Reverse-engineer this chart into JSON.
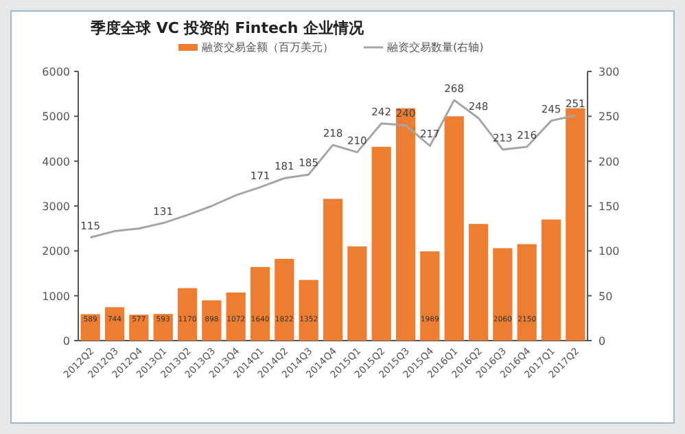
{
  "chart_data": {
    "type": "bar",
    "title": "季度全球 VC 投资的 Fintech 企业情况",
    "categories": [
      "2012Q2",
      "2012Q3",
      "2012Q4",
      "2013Q1",
      "2013Q2",
      "2013Q3",
      "2013Q4",
      "2014Q1",
      "2014Q2",
      "2014Q3",
      "2014Q4",
      "2015Q1",
      "2015Q2",
      "2015Q3",
      "2015Q4",
      "2016Q1",
      "2016Q2",
      "2016Q3",
      "2016Q4",
      "2017Q1",
      "2017Q2"
    ],
    "series": [
      {
        "name": "融资交易金额（百万美元）",
        "color": "#ed7d31",
        "values": [
          589,
          744,
          577,
          593,
          1170,
          898,
          1072,
          1640,
          1822,
          1352,
          3160,
          2100,
          4320,
          5180,
          1989,
          5000,
          2600,
          2060,
          2150,
          2700,
          5180
        ],
        "value_labels": [
          "589",
          "744",
          "577",
          "593",
          "1170",
          "898",
          "1072",
          "1640",
          "1822",
          "1352",
          null,
          null,
          null,
          null,
          "1989",
          null,
          null,
          "2060",
          "2150",
          null,
          null
        ]
      },
      {
        "name": "融资交易数量(右轴)",
        "type": "line",
        "axis": "y2",
        "color": "#a5a5a5",
        "values": [
          115,
          122,
          125,
          131,
          140,
          150,
          162,
          171,
          181,
          185,
          218,
          210,
          242,
          240,
          217,
          268,
          248,
          213,
          216,
          245,
          251
        ],
        "value_labels": [
          "115",
          null,
          null,
          "131",
          null,
          null,
          null,
          "171",
          "181",
          "185",
          "218",
          "210",
          "242",
          "240",
          "217",
          "268",
          "248",
          "213",
          "216",
          "245",
          "251"
        ]
      }
    ],
    "ylim": [
      0,
      6000
    ],
    "yticks": [
      0,
      1000,
      2000,
      3000,
      4000,
      5000,
      6000
    ],
    "y2lim": [
      0,
      300
    ],
    "y2ticks": [
      0,
      50,
      100,
      150,
      200,
      250,
      300
    ],
    "legend": "top"
  }
}
